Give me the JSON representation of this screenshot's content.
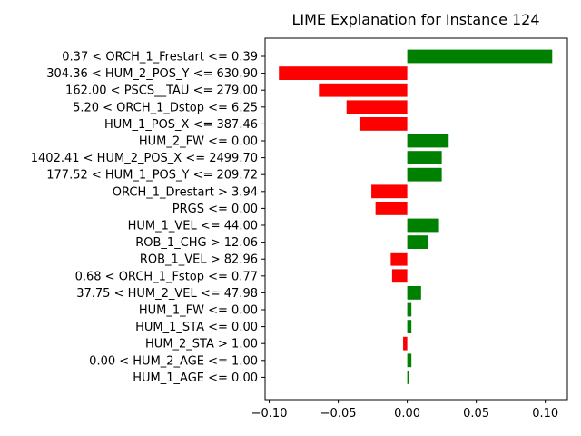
{
  "chart_data": {
    "type": "bar",
    "orientation": "horizontal",
    "title": "LIME Explanation for Instance 124",
    "xlabel": "",
    "ylabel": "",
    "xlim": [
      -0.103,
      0.116
    ],
    "xticks": [
      -0.1,
      -0.05,
      0.0,
      0.05,
      0.1
    ],
    "xtick_labels": [
      "−0.10",
      "−0.05",
      "0.00",
      "0.05",
      "0.10"
    ],
    "grid": false,
    "positive_color": "#008000",
    "negative_color": "#ff0000",
    "categories": [
      "0.37 < ORCH_1_Frestart <= 0.39",
      "304.36 < HUM_2_POS_Y <= 630.90",
      "162.00 < PSCS__TAU <= 279.00",
      "5.20 < ORCH_1_Dstop <= 6.25",
      "HUM_1_POS_X <= 387.46",
      "HUM_2_FW <= 0.00",
      "1402.41 < HUM_2_POS_X <= 2499.70",
      "177.52 < HUM_1_POS_Y <= 209.72",
      "ORCH_1_Drestart > 3.94",
      "PRGS <= 0.00",
      "HUM_1_VEL <= 44.00",
      "ROB_1_CHG > 12.06",
      "ROB_1_VEL > 82.96",
      "0.68 < ORCH_1_Fstop <= 0.77",
      "37.75 < HUM_2_VEL <= 47.98",
      "HUM_1_FW <= 0.00",
      "HUM_1_STA <= 0.00",
      "HUM_2_STA > 1.00",
      "0.00 < HUM_2_AGE <= 1.00",
      "HUM_1_AGE <= 0.00"
    ],
    "values": [
      0.105,
      -0.093,
      -0.064,
      -0.044,
      -0.034,
      0.03,
      0.025,
      0.025,
      -0.026,
      -0.023,
      0.023,
      0.015,
      -0.012,
      -0.011,
      0.01,
      0.003,
      0.003,
      -0.003,
      0.003,
      0.001
    ]
  }
}
